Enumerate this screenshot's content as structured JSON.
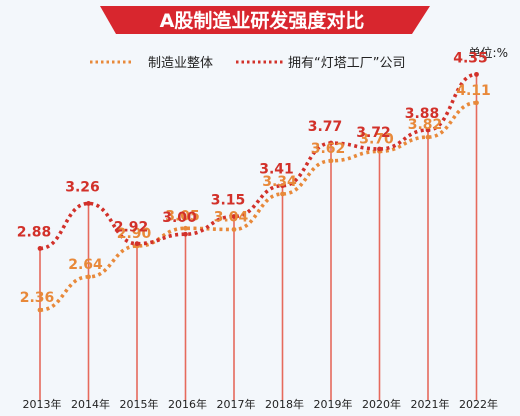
{
  "chart_data": {
    "type": "line",
    "title": "A股制造业研发强度对比",
    "unit_label": "单位:%",
    "categories": [
      "2013年",
      "2014年",
      "2015年",
      "2016年",
      "2017年",
      "2018年",
      "2019年",
      "2020年",
      "2021年",
      "2022年"
    ],
    "series": [
      {
        "name": "制造业整体",
        "color": "#e8893a",
        "values": [
          2.36,
          2.64,
          2.9,
          3.05,
          3.04,
          3.34,
          3.62,
          3.7,
          3.82,
          4.11
        ],
        "labels": [
          "2.36",
          "2.64",
          "2.90",
          "3.05",
          "3.04",
          "3.34",
          "3.62",
          "3.70",
          "3.82",
          "4.11"
        ]
      },
      {
        "name": "拥有“灯塔工厂”公司",
        "color": "#d2312a",
        "values": [
          2.88,
          3.26,
          2.92,
          3.0,
          3.15,
          3.41,
          3.77,
          3.72,
          3.88,
          4.35
        ],
        "labels": [
          "2.88",
          "3.26",
          "2.92",
          "3.00",
          "3.15",
          "3.41",
          "3.77",
          "3.72",
          "3.88",
          "4.35"
        ]
      }
    ],
    "grid": false,
    "legend_position": "top-center",
    "theme": {
      "title_band": "#d8262e",
      "title_text": "#ffffff",
      "stem_color": "#e66a5c",
      "background": "#f3f7fb"
    }
  }
}
